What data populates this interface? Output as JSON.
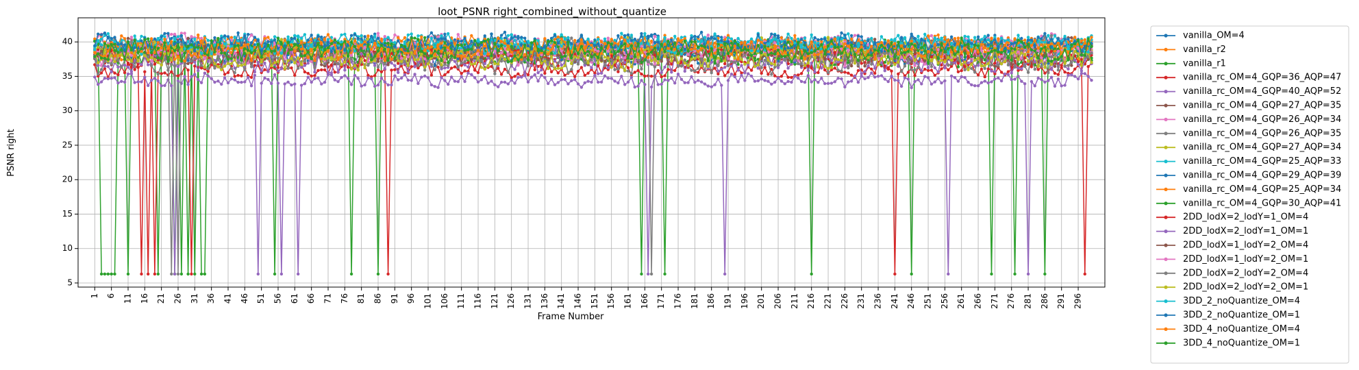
{
  "chart_data": {
    "type": "line",
    "title": "loot_PSNR right_combined_without_quantize",
    "xlabel": "Frame Number",
    "ylabel": "PSNR right",
    "x_start": 1,
    "x_end": 300,
    "xticks": [
      1,
      6,
      11,
      16,
      21,
      26,
      31,
      36,
      41,
      46,
      51,
      56,
      61,
      66,
      71,
      76,
      81,
      86,
      91,
      96,
      101,
      106,
      111,
      116,
      121,
      126,
      131,
      136,
      141,
      146,
      151,
      156,
      161,
      166,
      171,
      176,
      181,
      186,
      191,
      196,
      201,
      206,
      211,
      216,
      221,
      226,
      231,
      236,
      241,
      246,
      251,
      256,
      261,
      266,
      271,
      276,
      281,
      286,
      291,
      296
    ],
    "xtick_labels": [
      "1",
      "6",
      "11",
      "16",
      "21",
      "26",
      "31",
      "36",
      "41",
      "46",
      "51",
      "56",
      "61",
      "66",
      "71",
      "76",
      "81",
      "86",
      "91",
      "96",
      "101",
      "106",
      "111",
      "116",
      "121",
      "126",
      "131",
      "136",
      "141",
      "146",
      "151",
      "156",
      "161",
      "166",
      "171",
      "176",
      "181",
      "186",
      "191",
      "196",
      "201",
      "206",
      "211",
      "216",
      "221",
      "226",
      "231",
      "236",
      "241",
      "246",
      "251",
      "256",
      "261",
      "266",
      "271",
      "276",
      "281",
      "286",
      "291",
      "296"
    ],
    "yticks": [
      5,
      10,
      15,
      20,
      25,
      30,
      35,
      40
    ],
    "ytick_labels": [
      "5",
      "10",
      "15",
      "20",
      "25",
      "30",
      "35",
      "40"
    ],
    "ylim": [
      4.4,
      43.5
    ],
    "xlim": [
      -4,
      304
    ],
    "grid": true,
    "legend_position": "outside-right",
    "series": [
      {
        "name": "vanilla_OM=4",
        "color": "#1f77b4",
        "base": 39.5,
        "amp": 1.2,
        "drops": []
      },
      {
        "name": "vanilla_r2",
        "color": "#ff7f0e",
        "base": 39.2,
        "amp": 1.3,
        "drops": []
      },
      {
        "name": "vanilla_r1",
        "color": "#2ca02c",
        "base": 38.6,
        "amp": 1.5,
        "drops": [
          3,
          4,
          5,
          6,
          7,
          11,
          20,
          25,
          27,
          29,
          31,
          33,
          34,
          55,
          78,
          86,
          165,
          172,
          216,
          246,
          270,
          277,
          286
        ]
      },
      {
        "name": "vanilla_rc_OM=4_GQP=36_AQP=47",
        "color": "#d62728",
        "base": 36.0,
        "amp": 0.9,
        "drops": [
          15,
          17,
          19,
          30,
          89,
          241,
          298
        ]
      },
      {
        "name": "vanilla_rc_OM=4_GQP=40_AQP=52",
        "color": "#9467bd",
        "base": 34.4,
        "amp": 0.8,
        "drops": [
          25,
          50,
          57,
          62,
          167,
          190,
          257,
          281
        ]
      },
      {
        "name": "vanilla_rc_OM=4_GQP=27_AQP=35",
        "color": "#8c564b",
        "base": 39.0,
        "amp": 1.2,
        "drops": []
      },
      {
        "name": "vanilla_rc_OM=4_GQP=26_AQP=34",
        "color": "#e377c2",
        "base": 39.8,
        "amp": 1.1,
        "drops": []
      },
      {
        "name": "vanilla_rc_OM=4_GQP=26_AQP=35",
        "color": "#7f7f7f",
        "base": 39.3,
        "amp": 1.2,
        "drops": [
          24,
          26,
          168
        ]
      },
      {
        "name": "vanilla_rc_OM=4_GQP=27_AQP=34",
        "color": "#bcbd22",
        "base": 38.9,
        "amp": 1.3,
        "drops": []
      },
      {
        "name": "vanilla_rc_OM=4_GQP=25_AQP=33",
        "color": "#17becf",
        "base": 39.6,
        "amp": 1.2,
        "drops": []
      },
      {
        "name": "vanilla_rc_OM=4_GQP=29_AQP=39",
        "color": "#1f77b4",
        "base": 38.4,
        "amp": 1.4,
        "drops": []
      },
      {
        "name": "vanilla_rc_OM=4_GQP=25_AQP=34",
        "color": "#ff7f0e",
        "base": 39.4,
        "amp": 1.2,
        "drops": []
      },
      {
        "name": "vanilla_rc_OM=4_GQP=30_AQP=41",
        "color": "#2ca02c",
        "base": 38.2,
        "amp": 1.4,
        "drops": []
      },
      {
        "name": "2DD_lodX=2_lodY=1_OM=4",
        "color": "#d62728",
        "base": 37.5,
        "amp": 1.2,
        "drops": []
      },
      {
        "name": "2DD_lodX=2_lodY=1_OM=1",
        "color": "#9467bd",
        "base": 37.0,
        "amp": 1.3,
        "drops": []
      },
      {
        "name": "2DD_lodX=1_lodY=2_OM=4",
        "color": "#8c564b",
        "base": 38.0,
        "amp": 1.2,
        "drops": []
      },
      {
        "name": "2DD_lodX=1_lodY=2_OM=1",
        "color": "#e377c2",
        "base": 38.3,
        "amp": 1.3,
        "drops": []
      },
      {
        "name": "2DD_lodX=2_lodY=2_OM=4",
        "color": "#7f7f7f",
        "base": 37.2,
        "amp": 1.4,
        "drops": []
      },
      {
        "name": "2DD_lodX=2_lodY=2_OM=1",
        "color": "#bcbd22",
        "base": 37.6,
        "amp": 1.3,
        "drops": []
      },
      {
        "name": "3DD_2_noQuantize_OM=4",
        "color": "#17becf",
        "base": 39.7,
        "amp": 1.1,
        "drops": []
      },
      {
        "name": "3DD_2_noQuantize_OM=1",
        "color": "#1f77b4",
        "base": 39.9,
        "amp": 1.1,
        "drops": []
      },
      {
        "name": "3DD_4_noQuantize_OM=4",
        "color": "#ff7f0e",
        "base": 39.0,
        "amp": 1.3,
        "drops": []
      },
      {
        "name": "3DD_4_noQuantize_OM=1",
        "color": "#2ca02c",
        "base": 38.8,
        "amp": 1.4,
        "drops": []
      }
    ],
    "drop_value": 6.3
  }
}
